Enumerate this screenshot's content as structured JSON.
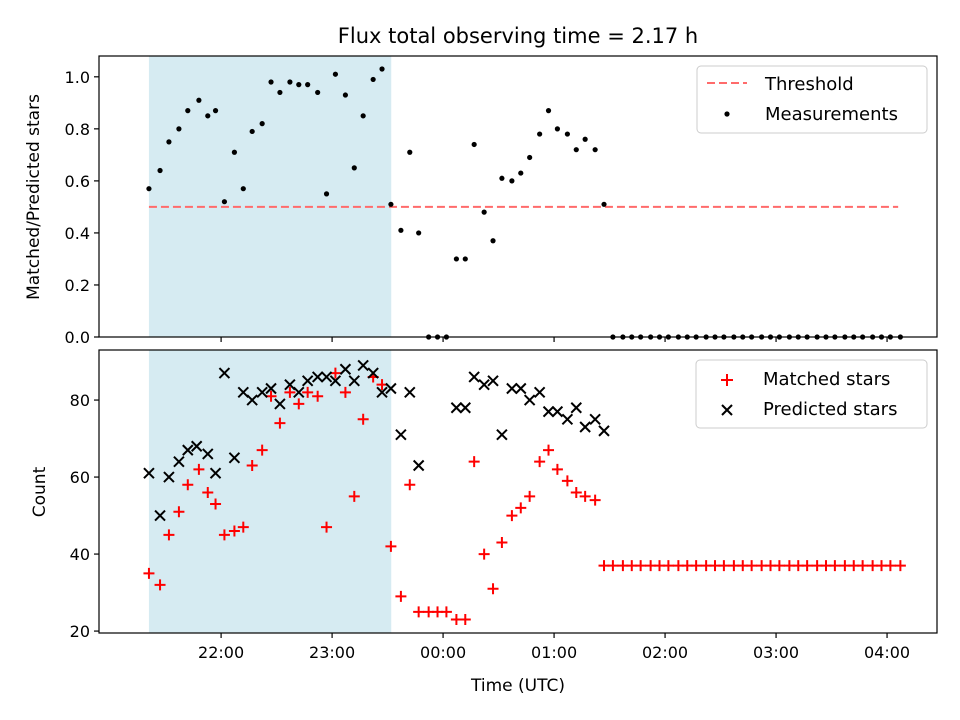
{
  "colors": {
    "threshold": "#ff6b6b",
    "measurement": "#000000",
    "matched": "#ff0000",
    "predicted": "#000000",
    "observing_span": "#add8e6"
  },
  "chart_data": [
    {
      "type": "scatter",
      "title": "Flux total observing time = 2.17 h",
      "xlabel": "",
      "ylabel": "Matched/Predicted stars",
      "x_unit": "hours since 21:00 UTC",
      "xlim": [
        20.9,
        28.45
      ],
      "ylim": [
        0.0,
        1.08
      ],
      "yticks": [
        0.0,
        0.2,
        0.4,
        0.6,
        0.8,
        1.0
      ],
      "ytick_labels": [
        "0.0",
        "0.2",
        "0.4",
        "0.6",
        "0.8",
        "1.0"
      ],
      "shaded_span_x": [
        21.35,
        23.533
      ],
      "threshold": {
        "name": "Threshold",
        "value": 0.5,
        "x_range": [
          21.35,
          28.1
        ]
      },
      "series": [
        {
          "name": "Measurements",
          "x": [
            21.35,
            21.45,
            21.53,
            21.62,
            21.7,
            21.8,
            21.88,
            21.95,
            22.03,
            22.12,
            22.2,
            22.28,
            22.37,
            22.45,
            22.53,
            22.62,
            22.7,
            22.78,
            22.87,
            22.95,
            23.03,
            23.12,
            23.2,
            23.28,
            23.37,
            23.45,
            23.53,
            23.62,
            23.7,
            23.78,
            23.87,
            23.95,
            24.03,
            24.12,
            24.2,
            24.28,
            24.37,
            24.45,
            24.53,
            24.62,
            24.7,
            24.78,
            24.87,
            24.95,
            25.03,
            25.12,
            25.2,
            25.28,
            25.37,
            25.45,
            25.53,
            25.62,
            25.7,
            25.78,
            25.87,
            25.95,
            26.03,
            26.12,
            26.2,
            26.28,
            26.37,
            26.45,
            26.53,
            26.62,
            26.7,
            26.78,
            26.87,
            26.95,
            27.03,
            27.12,
            27.2,
            27.28,
            27.37,
            27.45,
            27.53,
            27.62,
            27.7,
            27.78,
            27.87,
            27.95,
            28.03,
            28.12
          ],
          "y": [
            0.57,
            0.64,
            0.75,
            0.8,
            0.87,
            0.91,
            0.85,
            0.87,
            0.52,
            0.71,
            0.57,
            0.79,
            0.82,
            0.98,
            0.94,
            0.98,
            0.97,
            0.97,
            0.94,
            0.55,
            1.01,
            0.93,
            0.65,
            0.85,
            0.99,
            1.03,
            0.51,
            0.41,
            0.71,
            0.4,
            0.0,
            0.0,
            0.0,
            0.3,
            0.3,
            0.74,
            0.48,
            0.37,
            0.61,
            0.6,
            0.63,
            0.69,
            0.78,
            0.87,
            0.8,
            0.78,
            0.72,
            0.76,
            0.72,
            0.51,
            0.0,
            0.0,
            0.0,
            0.0,
            0.0,
            0.0,
            0.0,
            0.0,
            0.0,
            0.0,
            0.0,
            0.0,
            0.0,
            0.0,
            0.0,
            0.0,
            0.0,
            0.0,
            0.0,
            0.0,
            0.0,
            0.0,
            0.0,
            0.0,
            0.0,
            0.0,
            0.0,
            0.0,
            0.0,
            0.0,
            0.0,
            0.0
          ]
        }
      ],
      "legend": {
        "placement": "top-right",
        "entries": [
          "Threshold",
          "Measurements"
        ]
      }
    },
    {
      "type": "scatter",
      "title": "",
      "xlabel": "Time (UTC)",
      "ylabel": "Count",
      "x_unit": "hours since 21:00 UTC",
      "xlim": [
        20.9,
        28.45
      ],
      "ylim": [
        19.5,
        93.0
      ],
      "xticks": [
        22,
        23,
        24,
        25,
        26,
        27,
        28
      ],
      "xtick_labels": [
        "22:00",
        "23:00",
        "00:00",
        "01:00",
        "02:00",
        "03:00",
        "04:00"
      ],
      "yticks": [
        20,
        40,
        60,
        80
      ],
      "ytick_labels": [
        "20",
        "40",
        "60",
        "80"
      ],
      "shaded_span_x": [
        21.35,
        23.533
      ],
      "series": [
        {
          "name": "Matched stars",
          "x": [
            21.35,
            21.45,
            21.53,
            21.62,
            21.7,
            21.8,
            21.88,
            21.95,
            22.03,
            22.12,
            22.2,
            22.28,
            22.37,
            22.45,
            22.53,
            22.62,
            22.7,
            22.78,
            22.87,
            22.95,
            23.03,
            23.12,
            23.2,
            23.28,
            23.37,
            23.45,
            23.53,
            23.62,
            23.7,
            23.78,
            23.87,
            23.95,
            24.03,
            24.12,
            24.2,
            24.28,
            24.37,
            24.45,
            24.53,
            24.62,
            24.7,
            24.78,
            24.87,
            24.95,
            25.03,
            25.12,
            25.2,
            25.28,
            25.37,
            25.45,
            25.53,
            25.62,
            25.7,
            25.78,
            25.87,
            25.95,
            26.03,
            26.12,
            26.2,
            26.28,
            26.37,
            26.45,
            26.53,
            26.62,
            26.7,
            26.78,
            26.87,
            26.95,
            27.03,
            27.12,
            27.2,
            27.28,
            27.37,
            27.45,
            27.53,
            27.62,
            27.7,
            27.78,
            27.87,
            27.95,
            28.03,
            28.12
          ],
          "y": [
            35,
            32,
            45,
            51,
            58,
            62,
            56,
            53,
            45,
            46,
            47,
            63,
            67,
            81,
            74,
            82,
            79,
            82,
            81,
            47,
            87,
            82,
            55,
            75,
            86,
            84,
            42,
            29,
            58,
            25,
            25,
            25,
            25,
            23,
            23,
            64,
            40,
            31,
            43,
            50,
            52,
            55,
            64,
            67,
            62,
            59,
            56,
            55,
            54,
            37,
            37,
            37,
            37,
            37,
            37,
            37,
            37,
            37,
            37,
            37,
            37,
            37,
            37,
            37,
            37,
            37,
            37,
            37,
            37,
            37,
            37,
            37,
            37,
            37,
            37,
            37,
            37,
            37,
            37,
            37,
            37,
            37
          ]
        },
        {
          "name": "Predicted stars",
          "x": [
            21.35,
            21.45,
            21.53,
            21.62,
            21.7,
            21.78,
            21.88,
            21.95,
            22.03,
            22.12,
            22.2,
            22.28,
            22.37,
            22.45,
            22.53,
            22.62,
            22.7,
            22.78,
            22.87,
            22.95,
            23.03,
            23.12,
            23.2,
            23.28,
            23.37,
            23.45,
            23.53,
            23.62,
            23.7,
            23.78,
            24.12,
            24.2,
            24.28,
            24.37,
            24.45,
            24.53,
            24.62,
            24.7,
            24.78,
            24.87,
            24.95,
            25.03,
            25.12,
            25.2,
            25.28,
            25.37,
            25.45
          ],
          "y": [
            61,
            50,
            60,
            64,
            67,
            68,
            66,
            61,
            87,
            65,
            82,
            80,
            82,
            83,
            79,
            84,
            82,
            85,
            86,
            86,
            85,
            88,
            85,
            89,
            87,
            82,
            83,
            71,
            82,
            63,
            78,
            78,
            86,
            84,
            85,
            71,
            83,
            83,
            80,
            82,
            77,
            77,
            75,
            78,
            73,
            75,
            72
          ]
        }
      ],
      "legend": {
        "placement": "top-right",
        "entries": [
          "Matched stars",
          "Predicted stars"
        ]
      }
    }
  ]
}
